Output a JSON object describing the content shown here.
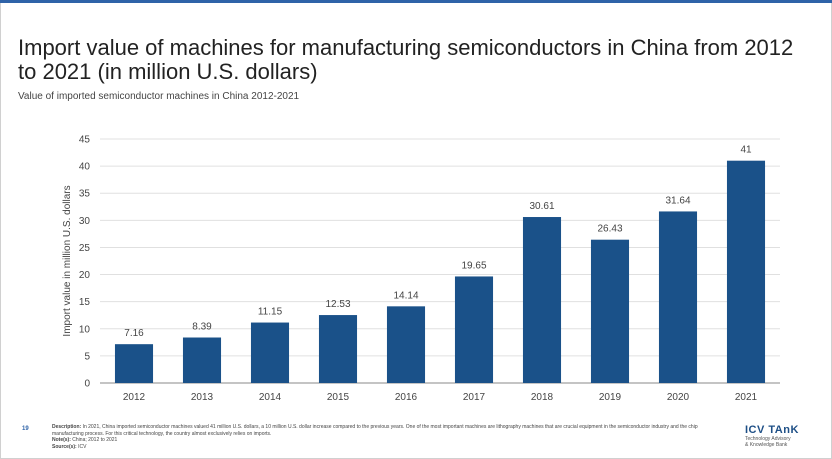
{
  "title": "Import value of machines for manufacturing semiconductors in China from 2012 to 2021 (in million U.S. dollars)",
  "subtitle": "Value of imported semiconductor machines in China 2012-2021",
  "footer": {
    "page_number": "19",
    "description_label": "Description:",
    "description": "In 2021, China imported semiconductor machines valued 41 million U.S. dollars, a 10 million U.S. dollar increase compared to the previous years. One of the most important machines are lithography machines that are crucial equipment in the semiconductor industry and the chip manufacturing process. For this critical technology, the country almost exclusively relies on imports.",
    "notes_label": "Note(s):",
    "notes": "China; 2012 to 2021",
    "sources_label": "Source(s):",
    "sources": "ICV"
  },
  "logo": {
    "name": "ICV TAnK",
    "tagline1": "Technology Advisory",
    "tagline2": "& Knowledge Bank"
  },
  "chart_data": {
    "type": "bar",
    "categories": [
      "2012",
      "2013",
      "2014",
      "2015",
      "2016",
      "2017",
      "2018",
      "2019",
      "2020",
      "2021"
    ],
    "values": [
      7.16,
      8.39,
      11.15,
      12.53,
      14.14,
      19.65,
      30.61,
      26.43,
      31.64,
      41
    ],
    "value_labels": [
      "7.16",
      "8.39",
      "11.15",
      "12.53",
      "14.14",
      "19.65",
      "30.61",
      "26.43",
      "31.64",
      "41"
    ],
    "ylabel": "Import value in million U.S. dollars",
    "xlabel": "",
    "ylim": [
      0,
      45
    ],
    "yticks": [
      0,
      5,
      10,
      15,
      20,
      25,
      30,
      35,
      40,
      45
    ],
    "bar_color": "#1a5189",
    "grid": true
  }
}
